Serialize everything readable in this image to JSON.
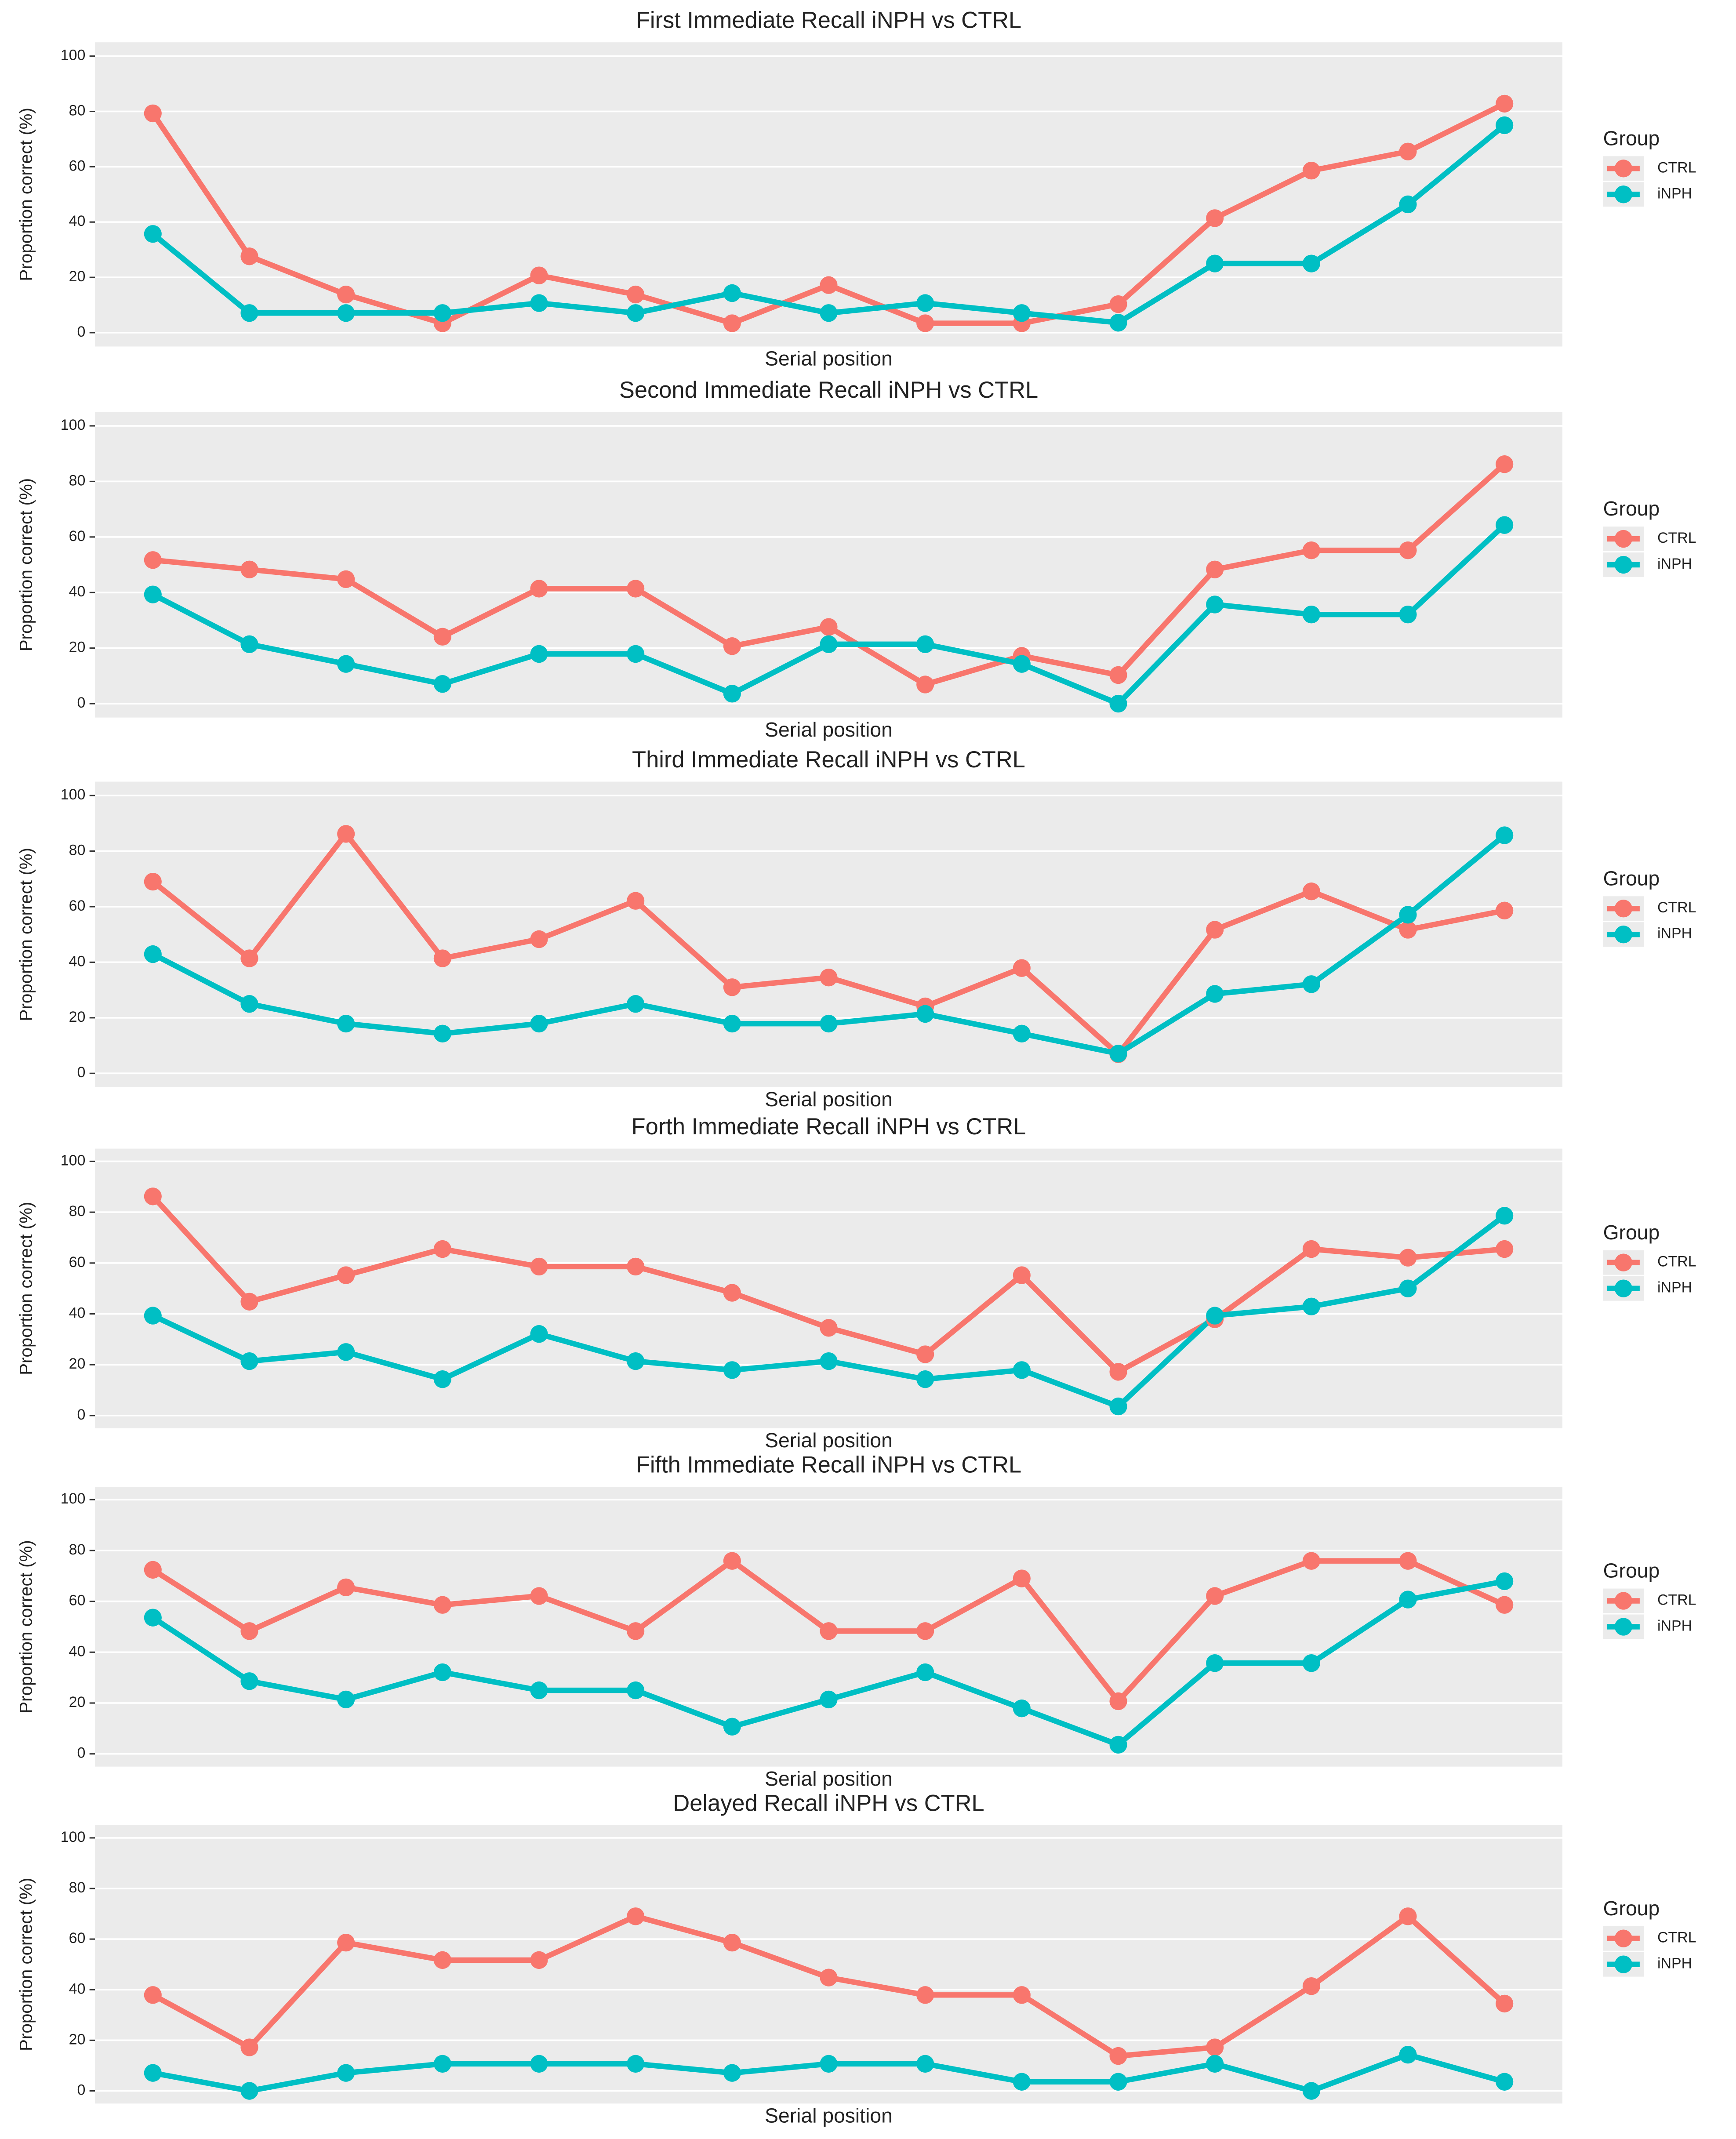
{
  "chart_data": [
    {
      "type": "line",
      "title": "First Immediate Recall iNPH vs CTRL",
      "x_label": "Serial position",
      "y_label": "Proportion correct (%)",
      "categories": [
        null,
        null,
        null,
        null,
        null,
        null,
        null,
        null,
        null,
        null,
        null,
        null,
        null,
        null,
        null
      ],
      "series": [
        {
          "name": "CTRL",
          "color": "#F8766D",
          "values": [
            79.3,
            27.6,
            13.8,
            3.4,
            20.7,
            13.8,
            3.4,
            17.2,
            3.4,
            3.4,
            10.3,
            41.4,
            58.6,
            65.5,
            82.8
          ]
        },
        {
          "name": "iNPH",
          "color": "#00BFC4",
          "values": [
            35.7,
            7.1,
            7.1,
            7.1,
            10.7,
            7.1,
            14.3,
            7.1,
            10.7,
            7.1,
            3.6,
            25,
            25,
            46.4,
            75
          ]
        }
      ],
      "ylim": [
        -5,
        105
      ],
      "yticks": [
        0,
        20,
        40,
        60,
        80,
        100
      ],
      "grid": true,
      "legend_title": "Group",
      "legend": "right"
    },
    {
      "type": "line",
      "title": "Second Immediate Recall iNPH vs CTRL",
      "x_label": "Serial position",
      "y_label": "Proportion correct (%)",
      "categories": [
        null,
        null,
        null,
        null,
        null,
        null,
        null,
        null,
        null,
        null,
        null,
        null,
        null,
        null,
        null
      ],
      "series": [
        {
          "name": "CTRL",
          "color": "#F8766D",
          "values": [
            51.7,
            48.3,
            44.8,
            24.1,
            41.4,
            41.4,
            20.7,
            27.6,
            6.9,
            17.2,
            10.3,
            48.3,
            55.2,
            55.2,
            86.2
          ]
        },
        {
          "name": "iNPH",
          "color": "#00BFC4",
          "values": [
            39.3,
            21.4,
            14.3,
            7.1,
            17.9,
            17.9,
            3.6,
            21.4,
            21.4,
            14.3,
            0,
            35.7,
            32.1,
            32.1,
            64.3
          ]
        }
      ],
      "ylim": [
        -5,
        105
      ],
      "yticks": [
        0,
        20,
        40,
        60,
        80,
        100
      ],
      "grid": true,
      "legend_title": "Group",
      "legend": "right"
    },
    {
      "type": "line",
      "title": "Third Immediate Recall iNPH vs CTRL",
      "x_label": "Serial position",
      "y_label": "Proportion correct (%)",
      "categories": [
        null,
        null,
        null,
        null,
        null,
        null,
        null,
        null,
        null,
        null,
        null,
        null,
        null,
        null,
        null
      ],
      "series": [
        {
          "name": "CTRL",
          "color": "#F8766D",
          "values": [
            69,
            41.4,
            86.2,
            41.4,
            48.3,
            62.1,
            31,
            34.5,
            24.1,
            37.9,
            6.9,
            51.7,
            65.5,
            51.7,
            58.6
          ]
        },
        {
          "name": "iNPH",
          "color": "#00BFC4",
          "values": [
            42.9,
            25,
            17.9,
            14.3,
            17.9,
            25,
            17.9,
            17.9,
            21.4,
            14.3,
            7.1,
            28.6,
            32.1,
            57.1,
            85.7
          ]
        }
      ],
      "ylim": [
        -5,
        105
      ],
      "yticks": [
        0,
        20,
        40,
        60,
        80,
        100
      ],
      "grid": true,
      "legend_title": "Group",
      "legend": "right"
    },
    {
      "type": "line",
      "title": "Forth Immediate Recall iNPH vs CTRL",
      "x_label": "Serial position",
      "y_label": "Proportion correct (%)",
      "categories": [
        null,
        null,
        null,
        null,
        null,
        null,
        null,
        null,
        null,
        null,
        null,
        null,
        null,
        null,
        null
      ],
      "series": [
        {
          "name": "CTRL",
          "color": "#F8766D",
          "values": [
            86.2,
            44.8,
            55.2,
            65.5,
            58.6,
            58.6,
            48.3,
            34.5,
            24.1,
            55.2,
            17.2,
            37.9,
            65.5,
            62.1,
            65.5
          ]
        },
        {
          "name": "iNPH",
          "color": "#00BFC4",
          "values": [
            39.3,
            21.4,
            25,
            14.3,
            32.1,
            21.4,
            17.9,
            21.4,
            14.3,
            17.9,
            3.6,
            39.3,
            42.9,
            50,
            78.6
          ]
        }
      ],
      "ylim": [
        -5,
        105
      ],
      "yticks": [
        0,
        20,
        40,
        60,
        80,
        100
      ],
      "grid": true,
      "legend_title": "Group",
      "legend": "right"
    },
    {
      "type": "line",
      "title": "Fifth Immediate Recall iNPH vs CTRL",
      "x_label": "Serial position",
      "y_label": "Proportion correct (%)",
      "categories": [
        null,
        null,
        null,
        null,
        null,
        null,
        null,
        null,
        null,
        null,
        null,
        null,
        null,
        null,
        null
      ],
      "series": [
        {
          "name": "CTRL",
          "color": "#F8766D",
          "values": [
            72.4,
            48.3,
            65.5,
            58.6,
            62.1,
            48.3,
            75.9,
            48.3,
            48.3,
            69,
            20.7,
            62.1,
            75.9,
            75.9,
            58.6
          ]
        },
        {
          "name": "iNPH",
          "color": "#00BFC4",
          "values": [
            53.6,
            28.6,
            21.4,
            32.1,
            25,
            25,
            10.7,
            21.4,
            32.1,
            17.9,
            3.6,
            35.7,
            35.7,
            60.7,
            67.9
          ]
        }
      ],
      "ylim": [
        -5,
        105
      ],
      "yticks": [
        0,
        20,
        40,
        60,
        80,
        100
      ],
      "grid": true,
      "legend_title": "Group",
      "legend": "right"
    },
    {
      "type": "line",
      "title": "Delayed Recall iNPH vs CTRL",
      "x_label": "Serial position",
      "y_label": "Proportion correct (%)",
      "categories": [
        null,
        null,
        null,
        null,
        null,
        null,
        null,
        null,
        null,
        null,
        null,
        null,
        null,
        null,
        null
      ],
      "series": [
        {
          "name": "CTRL",
          "color": "#F8766D",
          "values": [
            37.9,
            17.2,
            58.6,
            51.7,
            51.7,
            69,
            58.6,
            44.8,
            37.9,
            37.9,
            13.8,
            17.2,
            41.4,
            69,
            34.5
          ]
        },
        {
          "name": "iNPH",
          "color": "#00BFC4",
          "values": [
            7.1,
            0,
            7.1,
            10.7,
            10.7,
            10.7,
            7.1,
            10.7,
            10.7,
            3.6,
            3.6,
            10.7,
            0,
            14.3,
            3.6
          ]
        }
      ],
      "ylim": [
        -5,
        105
      ],
      "yticks": [
        0,
        20,
        40,
        60,
        80,
        100
      ],
      "grid": true,
      "legend_title": "Group",
      "legend": "right"
    }
  ]
}
